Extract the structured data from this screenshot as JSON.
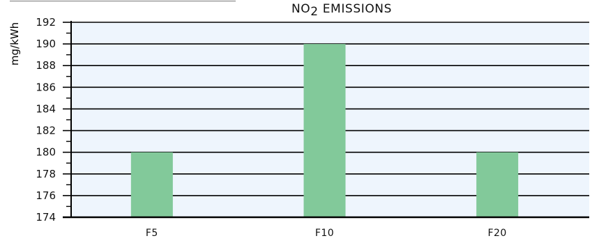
{
  "chart_data": {
    "type": "bar",
    "title_prefix": "NO",
    "title_sub": "2",
    "title_suffix": " EMISSIONS",
    "ylabel": "mg/kWh",
    "xlabel": "",
    "categories": [
      "F5",
      "F10",
      "F20"
    ],
    "values": [
      180,
      190,
      180
    ],
    "ylim": [
      174,
      192
    ],
    "yticks": [
      174,
      176,
      178,
      180,
      182,
      184,
      186,
      188,
      190,
      192
    ],
    "grid": true,
    "colors": {
      "bar": "#82c99a",
      "plot_background": "#eef5fd",
      "grid": "#000000",
      "axis": "#000000"
    }
  }
}
